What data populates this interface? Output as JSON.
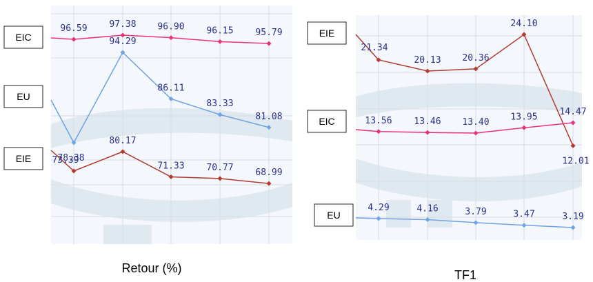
{
  "colors": {
    "EIC": "#e8317a",
    "EU": "#6fa3e3",
    "EIE": "#b23a2e"
  },
  "chart_data": [
    {
      "type": "line",
      "title": "Retour (%)",
      "legend_boxes": [
        "EIC",
        "EU",
        "EIE"
      ],
      "series": [
        {
          "name": "EIC",
          "values": [
            96.59,
            97.38,
            96.9,
            96.15,
            95.79
          ],
          "labels": [
            "96.59",
            "97.38",
            "96.90",
            "96.15",
            "95.79"
          ]
        },
        {
          "name": "EU",
          "values": [
            78.38,
            94.29,
            86.11,
            83.33,
            81.08
          ],
          "labels": [
            "78.38",
            "94.29",
            "86.11",
            "83.33",
            "81.08"
          ]
        },
        {
          "name": "EIE",
          "values": [
            73.39,
            80.17,
            71.33,
            70.77,
            68.99
          ],
          "labels": [
            "73.39",
            "80.17",
            "71.33",
            "70.77",
            "68.99"
          ]
        }
      ],
      "grid": true
    },
    {
      "type": "line",
      "title": "TF1",
      "legend_boxes": [
        "EIE",
        "EIC",
        "EU"
      ],
      "series": [
        {
          "name": "EIE",
          "values": [
            21.34,
            20.13,
            20.36,
            24.1,
            12.01
          ],
          "labels": [
            "21.34",
            "20.13",
            "20.36",
            "24.10",
            "12.01"
          ]
        },
        {
          "name": "EIC",
          "values": [
            13.56,
            13.46,
            13.4,
            13.95,
            14.47
          ],
          "labels": [
            "13.56",
            "13.46",
            "13.40",
            "13.95",
            "14.47"
          ]
        },
        {
          "name": "EU",
          "values": [
            4.29,
            4.16,
            3.79,
            3.47,
            3.19
          ],
          "labels": [
            "4.29",
            "4.16",
            "3.79",
            "3.47",
            "3.19"
          ]
        }
      ],
      "grid": true
    }
  ]
}
